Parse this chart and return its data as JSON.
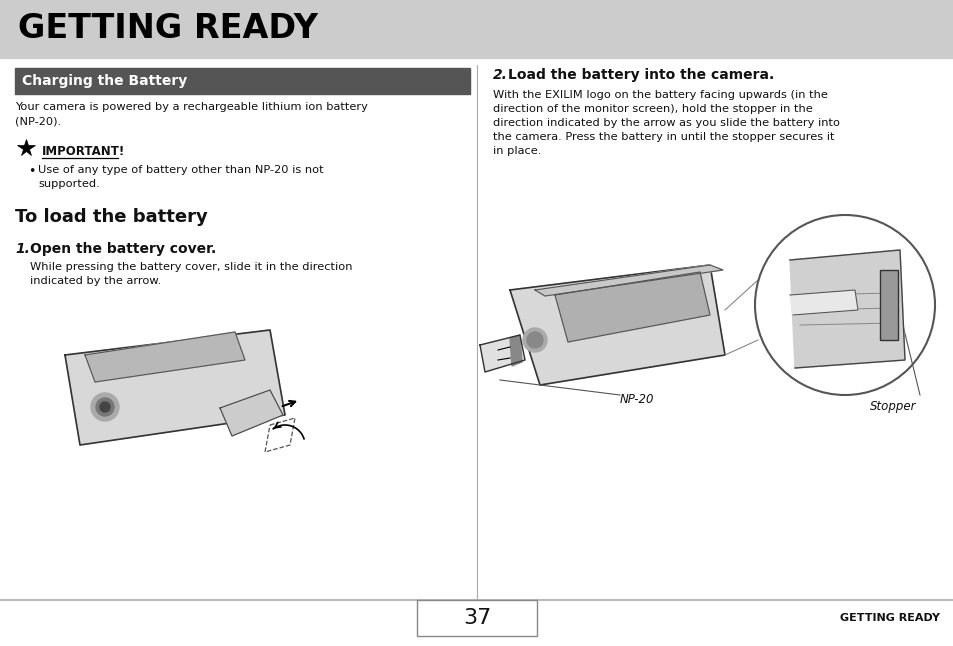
{
  "bg_color": "#ffffff",
  "header_bg": "#cccccc",
  "header_text": "GETTING READY",
  "header_text_color": "#000000",
  "section_header_bg": "#555555",
  "section_header_text": "Charging the Battery",
  "section_header_text_color": "#ffffff",
  "divider_color": "#aaaaaa",
  "body_text_color": "#111111",
  "para1_line1": "Your camera is powered by a rechargeable lithium ion battery",
  "para1_line2": "(NP-20).",
  "important_label": "IMPORTANT!",
  "bullet_text_line1": "Use of any type of battery other than NP-20 is not",
  "bullet_text_line2": "supported.",
  "section2_title": "To load the battery",
  "step1_num": "1.",
  "step1_head": "Open the battery cover.",
  "step1_body_line1": "While pressing the battery cover, slide it in the direction",
  "step1_body_line2": "indicated by the arrow.",
  "step2_num": "2.",
  "step2_head": "Load the battery into the camera.",
  "step2_body_line1": "With the EXILIM logo on the battery facing upwards (in the",
  "step2_body_line2": "direction of the monitor screen), hold the stopper in the",
  "step2_body_line3": "direction indicated by the arrow as you slide the battery into",
  "step2_body_line4": "the camera. Press the battery in until the stopper secures it",
  "step2_body_line5": "in place.",
  "np20_label": "NP-20",
  "stopper_label": "Stopper",
  "page_number": "37",
  "footer_text": "GETTING READY",
  "footer_line_color": "#bbbbbb"
}
